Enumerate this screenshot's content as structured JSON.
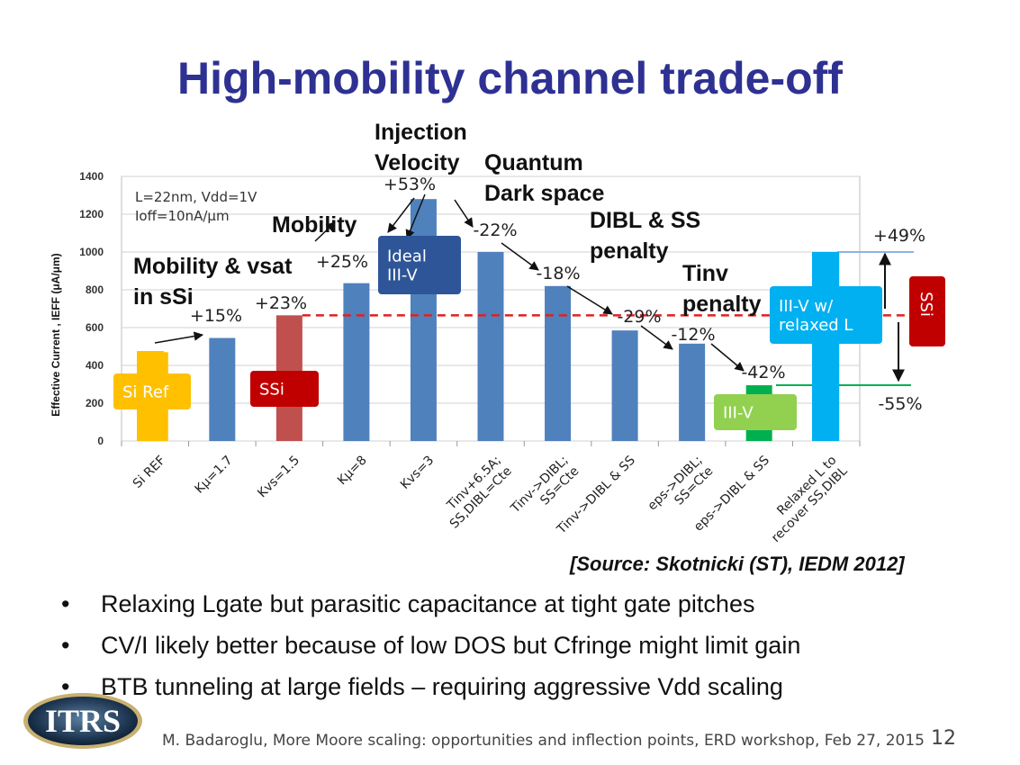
{
  "slide": {
    "title": "High-mobility channel trade-off",
    "source": "[Source: Skotnicki (ST), IEDM 2012]",
    "bullets": [
      "Relaxing Lgate but parasitic capacitance at tight gate pitches",
      "CV/I likely better because of low DOS but Cfringe might limit gain",
      "BTB tunneling at large fields – requiring aggressive Vdd scaling"
    ],
    "bullet_symbol": "•",
    "footer": "M. Badaroglu, More Moore scaling: opportunities and inflection points, ERD workshop, Feb 27, 2015",
    "page_number": "12",
    "logo_text": "ITRS"
  },
  "annotations": {
    "mobility_vsat": [
      "Mobility & vsat",
      "in sSi"
    ],
    "mobility": "Mobility",
    "injection": [
      "Injection",
      "Velocity"
    ],
    "quantum": [
      "Quantum",
      "Dark space"
    ],
    "dibl": [
      "DIBL & SS",
      "penalty"
    ],
    "tinv": [
      "Tinv",
      "penalty"
    ]
  },
  "chart_data": {
    "type": "bar",
    "ylabel": "Effective Current , IEFF (μA/μm)",
    "ylim": [
      0,
      1400
    ],
    "yticks": [
      "0",
      "200",
      "400",
      "600",
      "800",
      "1000",
      "1200",
      "1400"
    ],
    "conditions": [
      "L=22nm, Vdd=1V",
      "Ioff=10nA/μm"
    ],
    "categories": [
      "Si REF",
      "Kμ=1.7",
      "Kvs=1.5",
      "Kμ=8",
      "Kvs=3",
      "Tinv+6.5A; SS,DIBL=Cte",
      "Tinv->DIBL; SS=Cte",
      "Tinv->DIBL & SS",
      "eps->DIBL; SS=Cte",
      "eps->DIBL & SS",
      "Relaxed L to recover SS,DIBL"
    ],
    "values": [
      470,
      545,
      665,
      835,
      1280,
      1000,
      820,
      585,
      515,
      295,
      1000
    ],
    "bar_colors": [
      "#ffc000",
      "#4f81bd",
      "#c0504d",
      "#4f81bd",
      "#4f81bd",
      "#4f81bd",
      "#4f81bd",
      "#4f81bd",
      "#4f81bd",
      "#00b050",
      "#00b0f0"
    ],
    "deltas": [
      "+15%",
      "+23%",
      "+25%",
      "+53%",
      "-22%",
      "-18%",
      "-29%",
      "-12%",
      "-42%"
    ],
    "ss_reference": 665,
    "final_deltas": [
      "+49%",
      "-55%"
    ],
    "boxes": {
      "si_ref": "Si Ref",
      "ssi": "SSi",
      "ideal": [
        "Ideal",
        "III-V"
      ],
      "iiiv": "III-V",
      "relaxed": [
        "III-V w/",
        "relaxed L"
      ],
      "ss_side": "SSi"
    },
    "colors": {
      "blue": "#4f81bd",
      "yellow": "#ffc000",
      "red_bar": "#c0504d",
      "dark_red": "#c00000",
      "green": "#00b050",
      "cyan": "#00b0f0",
      "light_green": "#92d050",
      "navy": "#2e5597",
      "dashed": "#e02020"
    }
  }
}
